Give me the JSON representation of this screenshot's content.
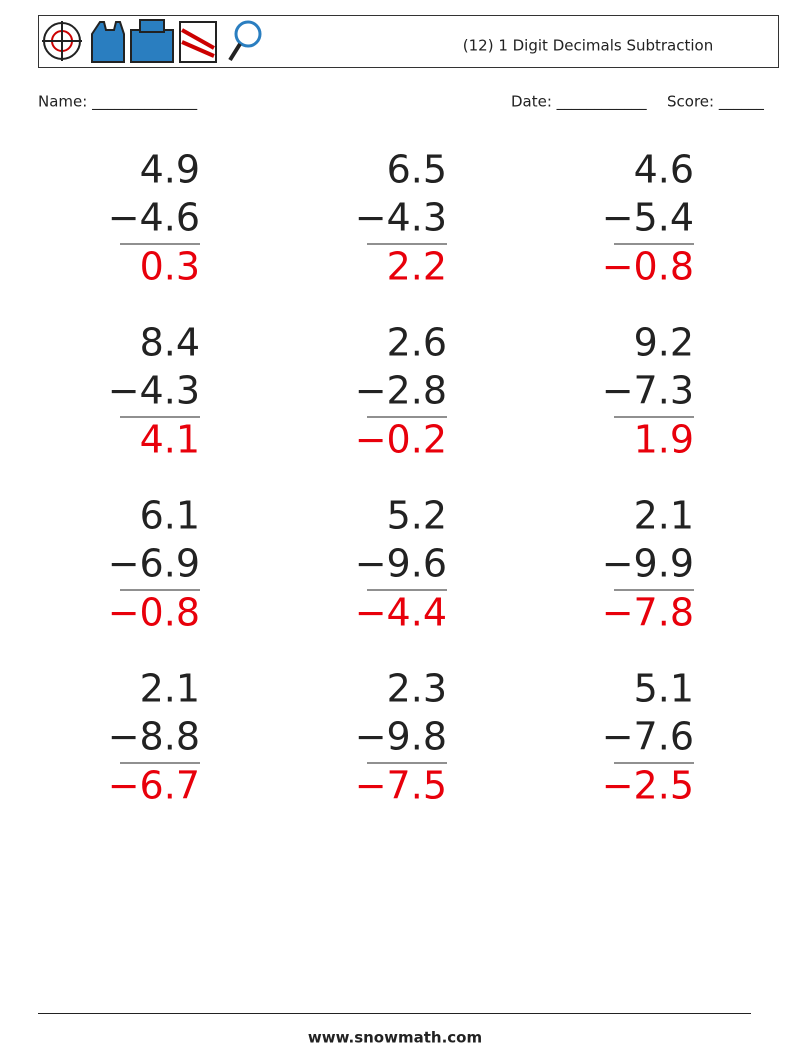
{
  "header": {
    "title": "(12) 1 Digit Decimals Subtraction"
  },
  "fields": {
    "name": "Name: ______________",
    "date": "Date: ____________",
    "score": "Score: ______"
  },
  "problems": [
    {
      "top": "4.9",
      "bottom": "−4.6",
      "answer": "0.3"
    },
    {
      "top": "6.5",
      "bottom": "−4.3",
      "answer": "2.2"
    },
    {
      "top": "4.6",
      "bottom": "−5.4",
      "answer": "−0.8"
    },
    {
      "top": "8.4",
      "bottom": "−4.3",
      "answer": "4.1"
    },
    {
      "top": "2.6",
      "bottom": "−2.8",
      "answer": "−0.2"
    },
    {
      "top": "9.2",
      "bottom": "−7.3",
      "answer": "1.9"
    },
    {
      "top": "6.1",
      "bottom": "−6.9",
      "answer": "−0.8"
    },
    {
      "top": "5.2",
      "bottom": "−9.6",
      "answer": "−4.4"
    },
    {
      "top": "2.1",
      "bottom": "−9.9",
      "answer": "−7.8"
    },
    {
      "top": "2.1",
      "bottom": "−8.8",
      "answer": "−6.7"
    },
    {
      "top": "2.3",
      "bottom": "−9.8",
      "answer": "−7.5"
    },
    {
      "top": "5.1",
      "bottom": "−7.6",
      "answer": "−2.5"
    }
  ],
  "footer": {
    "site": "www.snowmath.com"
  }
}
